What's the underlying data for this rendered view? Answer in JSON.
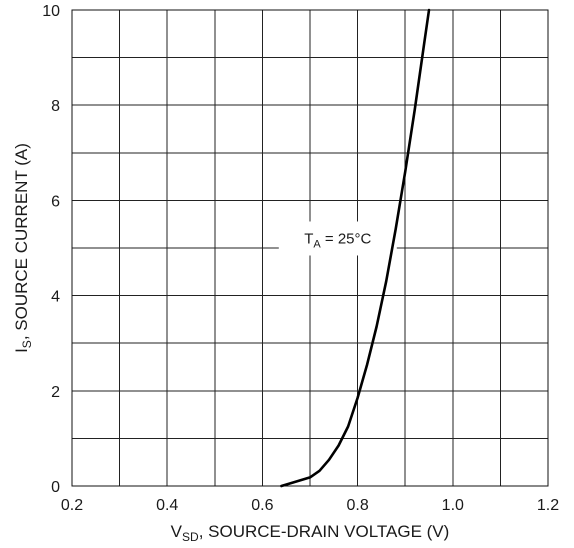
{
  "chart_data": {
    "type": "line",
    "xlabel": {
      "main": "V",
      "sub": "SD",
      "rest": ", SOURCE-DRAIN VOLTAGE (V)"
    },
    "ylabel": {
      "main": "I",
      "sub": "S",
      "rest": ", SOURCE CURRENT (A)"
    },
    "xlim": [
      0.2,
      1.2
    ],
    "ylim": [
      0,
      10
    ],
    "x_ticks": [
      "0.2",
      "0.4",
      "0.6",
      "0.8",
      "1.0",
      "1.2"
    ],
    "y_ticks": [
      "0",
      "2",
      "4",
      "6",
      "8",
      "10"
    ],
    "grid": true,
    "annotation": {
      "main": "T",
      "sub": "A",
      "rest": " = 25°C"
    },
    "series": [
      {
        "x": [
          0.64,
          0.66,
          0.68,
          0.7,
          0.72,
          0.74,
          0.76,
          0.78,
          0.8,
          0.82,
          0.84,
          0.86,
          0.88,
          0.9,
          0.92,
          0.94,
          0.95
        ],
        "y": [
          0.0,
          0.06,
          0.12,
          0.18,
          0.32,
          0.55,
          0.85,
          1.25,
          1.85,
          2.55,
          3.35,
          4.3,
          5.4,
          6.6,
          7.9,
          9.3,
          10.0
        ]
      }
    ]
  }
}
